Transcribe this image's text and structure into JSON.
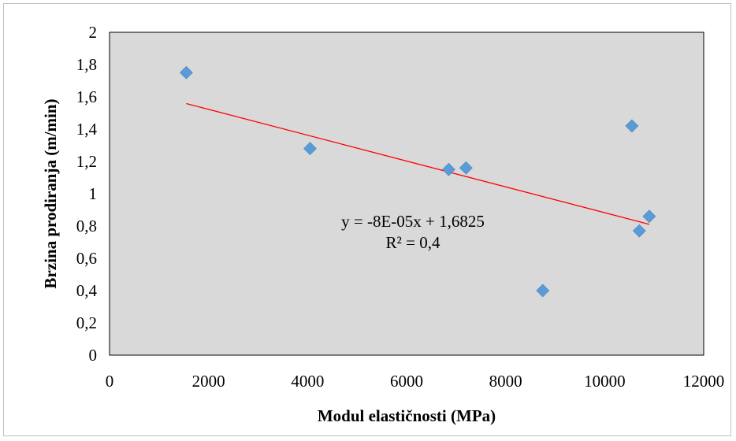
{
  "chart_data": {
    "type": "scatter",
    "xlabel": "Modul elastičnosti (MPa)",
    "ylabel": "Brzina prodiranja (m/min)",
    "xlim": [
      0,
      12000
    ],
    "ylim": [
      0,
      2
    ],
    "x_ticks": [
      0,
      2000,
      4000,
      6000,
      8000,
      10000,
      12000
    ],
    "x_tick_labels": [
      "0",
      "2000",
      "4000",
      "6000",
      "8000",
      "10000",
      "12000"
    ],
    "y_ticks": [
      0,
      0.2,
      0.4,
      0.6,
      0.8,
      1,
      1.2,
      1.4,
      1.6,
      1.8,
      2
    ],
    "y_tick_labels": [
      "0",
      "0,2",
      "0,4",
      "0,6",
      "0,8",
      "1",
      "1,2",
      "1,4",
      "1,6",
      "1,8",
      "2"
    ],
    "grid": false,
    "legend": "none",
    "series": [
      {
        "marker": "diamond",
        "color": "#5b9bd5",
        "points": [
          {
            "x": 1550,
            "y": 1.75
          },
          {
            "x": 4050,
            "y": 1.28
          },
          {
            "x": 6850,
            "y": 1.15
          },
          {
            "x": 7200,
            "y": 1.16
          },
          {
            "x": 8750,
            "y": 0.4
          },
          {
            "x": 10550,
            "y": 1.42
          },
          {
            "x": 10700,
            "y": 0.77
          },
          {
            "x": 10900,
            "y": 0.86
          }
        ]
      }
    ],
    "trendline": {
      "type": "linear",
      "color": "#ff0000",
      "slope": -8e-05,
      "intercept": 1.6825,
      "x_range": [
        1550,
        10900
      ],
      "equation": "y = -8E-05x + 1,6825",
      "r_squared": "R² = 0,4"
    },
    "plot_background": "#d9d9d9"
  }
}
